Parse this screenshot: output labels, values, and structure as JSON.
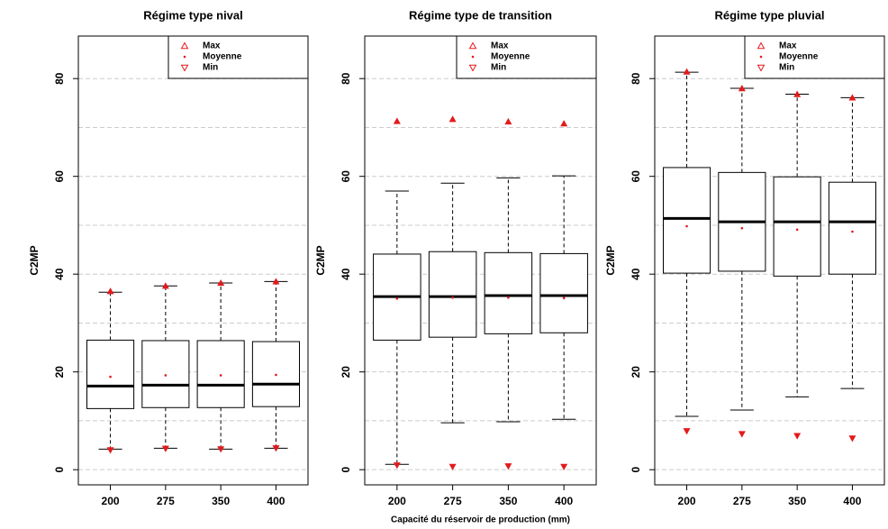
{
  "chart_data": [
    {
      "type": "box",
      "title": "Régime type nival",
      "ylabel": "C2MP",
      "categories": [
        "200",
        "275",
        "350",
        "400"
      ],
      "boxes": {
        "low": [
          4.2,
          4.4,
          4.2,
          4.4
        ],
        "q1": [
          12.5,
          12.7,
          12.7,
          12.9
        ],
        "median": [
          17.1,
          17.3,
          17.3,
          17.5
        ],
        "q3": [
          26.5,
          26.4,
          26.4,
          26.2
        ],
        "high": [
          36.3,
          37.6,
          38.2,
          38.5
        ]
      },
      "series": [
        {
          "name": "Max",
          "color": "#e31a1c",
          "marker": "triangle-up",
          "values": [
            36.5,
            37.6,
            38.2,
            38.5
          ]
        },
        {
          "name": "Moyenne",
          "color": "#e31a1c",
          "marker": "dot",
          "values": [
            19.0,
            19.3,
            19.3,
            19.4
          ]
        },
        {
          "name": "Min",
          "color": "#e31a1c",
          "marker": "triangle-down",
          "values": [
            4.0,
            4.3,
            4.2,
            4.4
          ]
        }
      ],
      "ylim": [
        -3.1,
        88.7
      ],
      "yticks": [
        0,
        20,
        40,
        60,
        80
      ],
      "minor_yticks": [
        10,
        30,
        50,
        70
      ],
      "grid": true,
      "legend": "top-right"
    },
    {
      "type": "box",
      "title": "Régime type de transition",
      "ylabel": "C2MP",
      "xlabel": "Capacité du réservoir de production (mm)",
      "categories": [
        "200",
        "275",
        "350",
        "400"
      ],
      "boxes": {
        "low": [
          1.1,
          9.6,
          9.8,
          10.3
        ],
        "q1": [
          26.5,
          27.1,
          27.8,
          28.0
        ],
        "median": [
          35.4,
          35.4,
          35.6,
          35.6
        ],
        "q3": [
          44.1,
          44.6,
          44.4,
          44.2
        ],
        "high": [
          57.0,
          58.6,
          59.7,
          60.1
        ]
      },
      "series": [
        {
          "name": "Max",
          "color": "#e31a1c",
          "marker": "triangle-up",
          "values": [
            71.3,
            71.7,
            71.2,
            70.8
          ]
        },
        {
          "name": "Moyenne",
          "color": "#e31a1c",
          "marker": "dot",
          "values": [
            35.0,
            35.2,
            35.2,
            35.1
          ]
        },
        {
          "name": "Min",
          "color": "#e31a1c",
          "marker": "triangle-down",
          "values": [
            0.9,
            0.6,
            0.7,
            0.6
          ]
        }
      ],
      "ylim": [
        -3.1,
        88.7
      ],
      "yticks": [
        0,
        20,
        40,
        60,
        80
      ],
      "minor_yticks": [
        10,
        30,
        50,
        70
      ],
      "grid": true,
      "legend": "top-right"
    },
    {
      "type": "box",
      "title": "Régime type pluvial",
      "ylabel": "C2MP",
      "categories": [
        "200",
        "275",
        "350",
        "400"
      ],
      "boxes": {
        "low": [
          10.9,
          12.2,
          14.9,
          16.6
        ],
        "q1": [
          40.2,
          40.6,
          39.6,
          40.0
        ],
        "median": [
          51.4,
          50.7,
          50.7,
          50.7
        ],
        "q3": [
          61.8,
          60.8,
          59.9,
          58.8
        ],
        "high": [
          81.3,
          78.0,
          76.8,
          76.1
        ]
      },
      "series": [
        {
          "name": "Max",
          "color": "#e31a1c",
          "marker": "triangle-up",
          "values": [
            81.4,
            78.0,
            76.8,
            76.1
          ]
        },
        {
          "name": "Moyenne",
          "color": "#e31a1c",
          "marker": "dot",
          "values": [
            49.8,
            49.4,
            49.1,
            48.7
          ]
        },
        {
          "name": "Min",
          "color": "#e31a1c",
          "marker": "triangle-down",
          "values": [
            7.9,
            7.3,
            6.9,
            6.4
          ]
        }
      ],
      "ylim": [
        -3.1,
        88.7
      ],
      "yticks": [
        0,
        20,
        40,
        60,
        80
      ],
      "minor_yticks": [
        10,
        30,
        50,
        70
      ],
      "grid": true,
      "legend": "top-right"
    }
  ]
}
